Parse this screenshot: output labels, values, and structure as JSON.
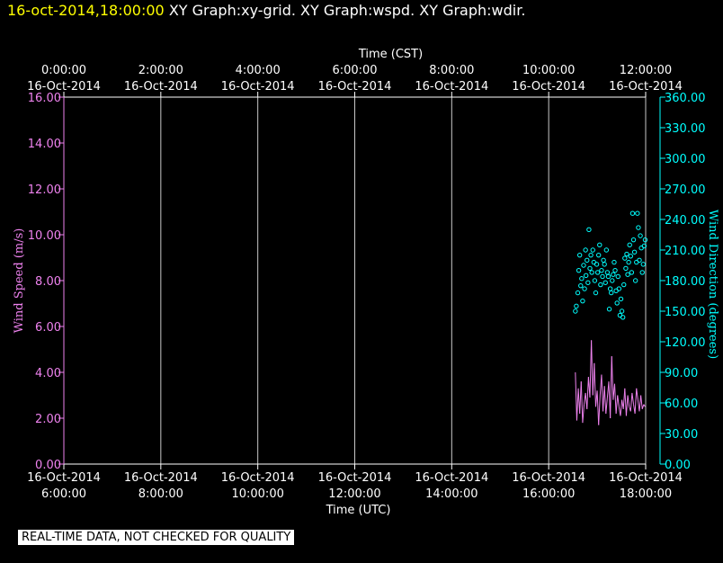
{
  "header": {
    "timestamp": "16-oct-2014,18:00:00",
    "title": " XY Graph:xy-grid.  XY Graph:wspd.  XY Graph:wdir."
  },
  "footer": {
    "quality_note": "REAL-TIME DATA, NOT CHECKED FOR QUALITY"
  },
  "colors": {
    "background": "#000000",
    "axis": "#ffffff",
    "grid": "#c8c8c8",
    "speed": "#ee82ee",
    "direction": "#00ffff",
    "header": "#ffff00"
  },
  "chart_data": {
    "type": "line",
    "top_axis": {
      "label": "Time (CST)",
      "ticks": [
        {
          "x": 6,
          "time": "0:00:00",
          "date": "16-Oct-2014"
        },
        {
          "x": 8,
          "time": "2:00:00",
          "date": "16-Oct-2014"
        },
        {
          "x": 10,
          "time": "4:00:00",
          "date": "16-Oct-2014"
        },
        {
          "x": 12,
          "time": "6:00:00",
          "date": "16-Oct-2014"
        },
        {
          "x": 14,
          "time": "8:00:00",
          "date": "16-Oct-2014"
        },
        {
          "x": 16,
          "time": "10:00:00",
          "date": "16-Oct-2014"
        },
        {
          "x": 18,
          "time": "12:00:00",
          "date": "16-Oct-2014"
        }
      ]
    },
    "bottom_axis": {
      "label": "Time (UTC)",
      "ticks": [
        {
          "x": 6,
          "date": "16-Oct-2014",
          "time": "6:00:00"
        },
        {
          "x": 8,
          "date": "16-Oct-2014",
          "time": "8:00:00"
        },
        {
          "x": 10,
          "date": "16-Oct-2014",
          "time": "10:00:00"
        },
        {
          "x": 12,
          "date": "16-Oct-2014",
          "time": "12:00:00"
        },
        {
          "x": 14,
          "date": "16-Oct-2014",
          "time": "14:00:00"
        },
        {
          "x": 16,
          "date": "16-Oct-2014",
          "time": "16:00:00"
        },
        {
          "x": 18,
          "date": "16-Oct-2014",
          "time": "18:00:00"
        }
      ]
    },
    "xlim": [
      6,
      18
    ],
    "left_axis": {
      "label": "Wind Speed (m/s)",
      "ylim": [
        0,
        16
      ],
      "ticks": [
        "0.00",
        "2.00",
        "4.00",
        "6.00",
        "8.00",
        "10.00",
        "12.00",
        "14.00",
        "16.00"
      ]
    },
    "right_axis": {
      "label": "Wind Direction (degrees)",
      "ylim": [
        0,
        360
      ],
      "ticks": [
        "0.00",
        "30.00",
        "60.00",
        "90.00",
        "120.00",
        "150.00",
        "180.00",
        "210.00",
        "240.00",
        "270.00",
        "300.00",
        "330.00",
        "360.00"
      ]
    },
    "grid": "vertical",
    "series": [
      {
        "name": "Wind Speed",
        "type": "line",
        "axis": "left",
        "x": [
          16.55,
          16.58,
          16.61,
          16.64,
          16.67,
          16.7,
          16.73,
          16.76,
          16.79,
          16.82,
          16.85,
          16.88,
          16.91,
          16.94,
          16.97,
          17.0,
          17.03,
          17.06,
          17.09,
          17.12,
          17.15,
          17.18,
          17.21,
          17.24,
          17.27,
          17.3,
          17.33,
          17.36,
          17.39,
          17.42,
          17.45,
          17.48,
          17.51,
          17.54,
          17.57,
          17.6,
          17.63,
          17.66,
          17.69,
          17.72,
          17.75,
          17.78,
          17.81,
          17.84,
          17.87,
          17.9,
          17.93,
          17.96,
          17.99
        ],
        "values": [
          4.0,
          1.9,
          3.3,
          2.2,
          3.6,
          1.8,
          2.6,
          3.1,
          2.4,
          3.8,
          2.9,
          5.4,
          3.0,
          4.4,
          2.5,
          3.2,
          1.7,
          3.0,
          3.9,
          2.3,
          3.4,
          2.2,
          2.9,
          3.6,
          2.0,
          4.7,
          2.8,
          3.5,
          2.2,
          3.0,
          2.5,
          2.1,
          2.8,
          2.4,
          3.3,
          2.1,
          3.0,
          2.5,
          2.3,
          3.1,
          2.6,
          2.2,
          3.3,
          2.8,
          2.3,
          3.0,
          2.4,
          2.6,
          2.5
        ]
      },
      {
        "name": "Wind Direction",
        "type": "scatter",
        "axis": "right",
        "x": [
          16.55,
          16.57,
          16.6,
          16.62,
          16.64,
          16.66,
          16.68,
          16.7,
          16.72,
          16.74,
          16.76,
          16.77,
          16.79,
          16.81,
          16.83,
          16.85,
          16.87,
          16.89,
          16.91,
          16.93,
          16.95,
          16.97,
          16.99,
          17.01,
          17.03,
          17.05,
          17.07,
          17.09,
          17.11,
          17.13,
          17.15,
          17.17,
          17.19,
          17.21,
          17.23,
          17.25,
          17.27,
          17.29,
          17.31,
          17.33,
          17.35,
          17.37,
          17.39,
          17.41,
          17.43,
          17.45,
          17.47,
          17.49,
          17.51,
          17.53,
          17.55,
          17.57,
          17.59,
          17.61,
          17.63,
          17.65,
          17.67,
          17.69,
          17.71,
          17.73,
          17.75,
          17.77,
          17.79,
          17.81,
          17.83,
          17.85,
          17.87,
          17.89,
          17.91,
          17.93,
          17.95,
          17.97,
          17.99
        ],
        "values": [
          150,
          155,
          168,
          190,
          205,
          175,
          182,
          160,
          195,
          172,
          210,
          185,
          200,
          178,
          230,
          192,
          205,
          188,
          210,
          198,
          180,
          168,
          196,
          188,
          205,
          215,
          176,
          190,
          184,
          200,
          196,
          178,
          210,
          188,
          184,
          152,
          172,
          168,
          180,
          186,
          198,
          190,
          170,
          158,
          184,
          172,
          146,
          162,
          150,
          144,
          176,
          202,
          192,
          206,
          186,
          198,
          215,
          204,
          188,
          246,
          220,
          208,
          180,
          198,
          246,
          232,
          200,
          224,
          212,
          188,
          196,
          214,
          220
        ]
      }
    ]
  }
}
